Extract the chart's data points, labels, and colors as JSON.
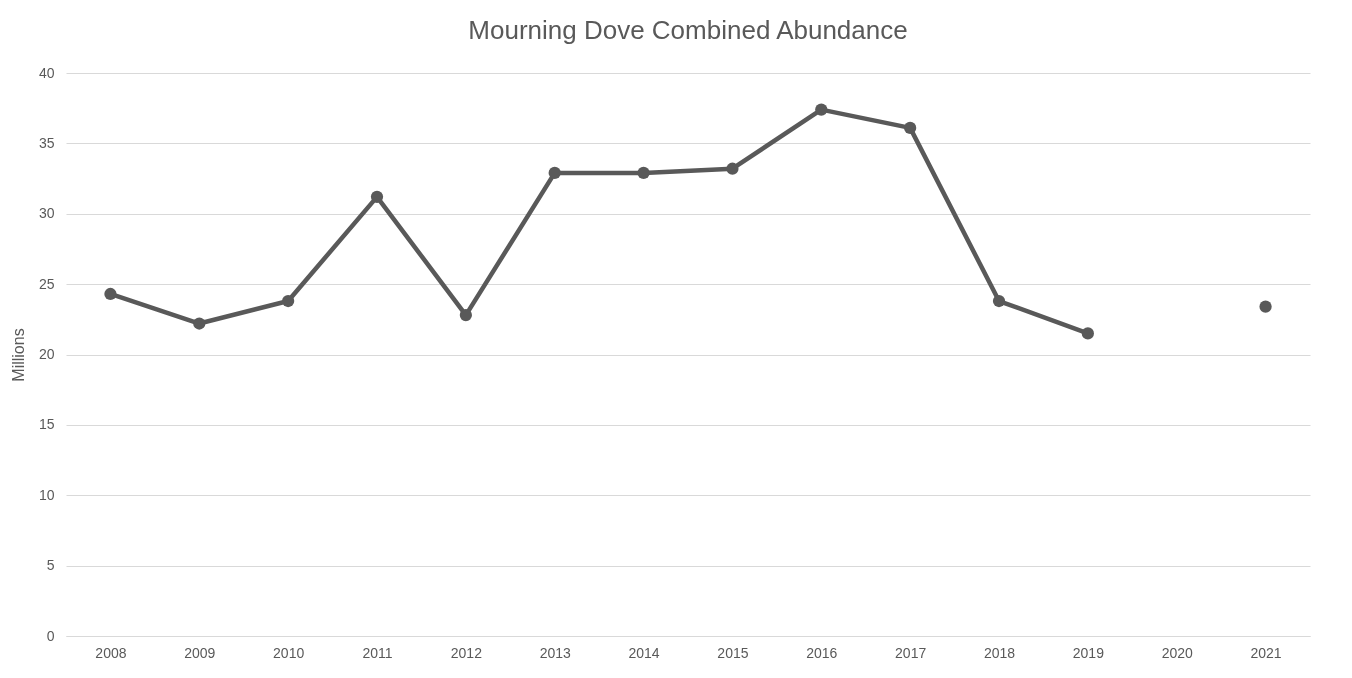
{
  "chart_data": {
    "type": "line",
    "title": "Mourning Dove Combined Abundance",
    "ylabel": "Millions",
    "categories": [
      "2008",
      "2009",
      "2010",
      "2011",
      "2012",
      "2013",
      "2014",
      "2015",
      "2016",
      "2017",
      "2018",
      "2019",
      "2020",
      "2021"
    ],
    "series": [
      {
        "color": "#595959",
        "values": [
          24.3,
          22.2,
          23.8,
          31.2,
          22.8,
          32.9,
          32.9,
          33.2,
          37.4,
          36.1,
          23.8,
          21.5,
          null,
          23.4
        ]
      }
    ],
    "ylim": [
      0,
      40
    ],
    "yticks": [
      0,
      5,
      10,
      15,
      20,
      25,
      30,
      35,
      40
    ],
    "grid": "y",
    "marker": "circle",
    "line_style": "solid"
  }
}
